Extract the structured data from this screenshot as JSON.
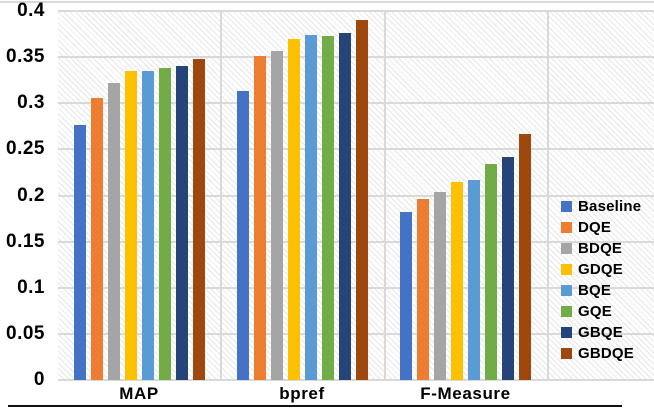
{
  "chart_data": {
    "type": "bar",
    "title": "",
    "xlabel": "",
    "ylabel": "",
    "categories": [
      "MAP",
      "bpref",
      "F-Measure"
    ],
    "series": [
      {
        "name": "Baseline",
        "color": "#4472C4",
        "values": [
          0.276,
          0.313,
          0.182
        ]
      },
      {
        "name": "DQE",
        "color": "#ED7D31",
        "values": [
          0.306,
          0.351,
          0.196
        ]
      },
      {
        "name": "BDQE",
        "color": "#A5A5A5",
        "values": [
          0.322,
          0.357,
          0.204
        ]
      },
      {
        "name": "GDQE",
        "color": "#FFC000",
        "values": [
          0.335,
          0.37,
          0.215
        ]
      },
      {
        "name": "BQE",
        "color": "#5B9BD5",
        "values": [
          0.335,
          0.374,
          0.217
        ]
      },
      {
        "name": "GQE",
        "color": "#70AD47",
        "values": [
          0.338,
          0.373,
          0.234
        ]
      },
      {
        "name": "GBQE",
        "color": "#264478",
        "values": [
          0.34,
          0.376,
          0.242
        ]
      },
      {
        "name": "GBDQE",
        "color": "#9E480E",
        "values": [
          0.348,
          0.39,
          0.267
        ]
      }
    ],
    "ylim": [
      0,
      0.4
    ],
    "ytick_labels": [
      "0",
      "0.05",
      "0.1",
      "0.15",
      "0.2",
      "0.25",
      "0.3",
      "0.35",
      "0.4"
    ],
    "grid": true,
    "gridline_color": "#d9d9d9",
    "plot_background": "light-diagonal-hatch",
    "legend_position": "right-inside",
    "legend_entries": [
      "Baseline",
      "DQE",
      "BDQE",
      "GDQE",
      "BQE",
      "GQE",
      "GBQE",
      "GBDQE"
    ]
  }
}
